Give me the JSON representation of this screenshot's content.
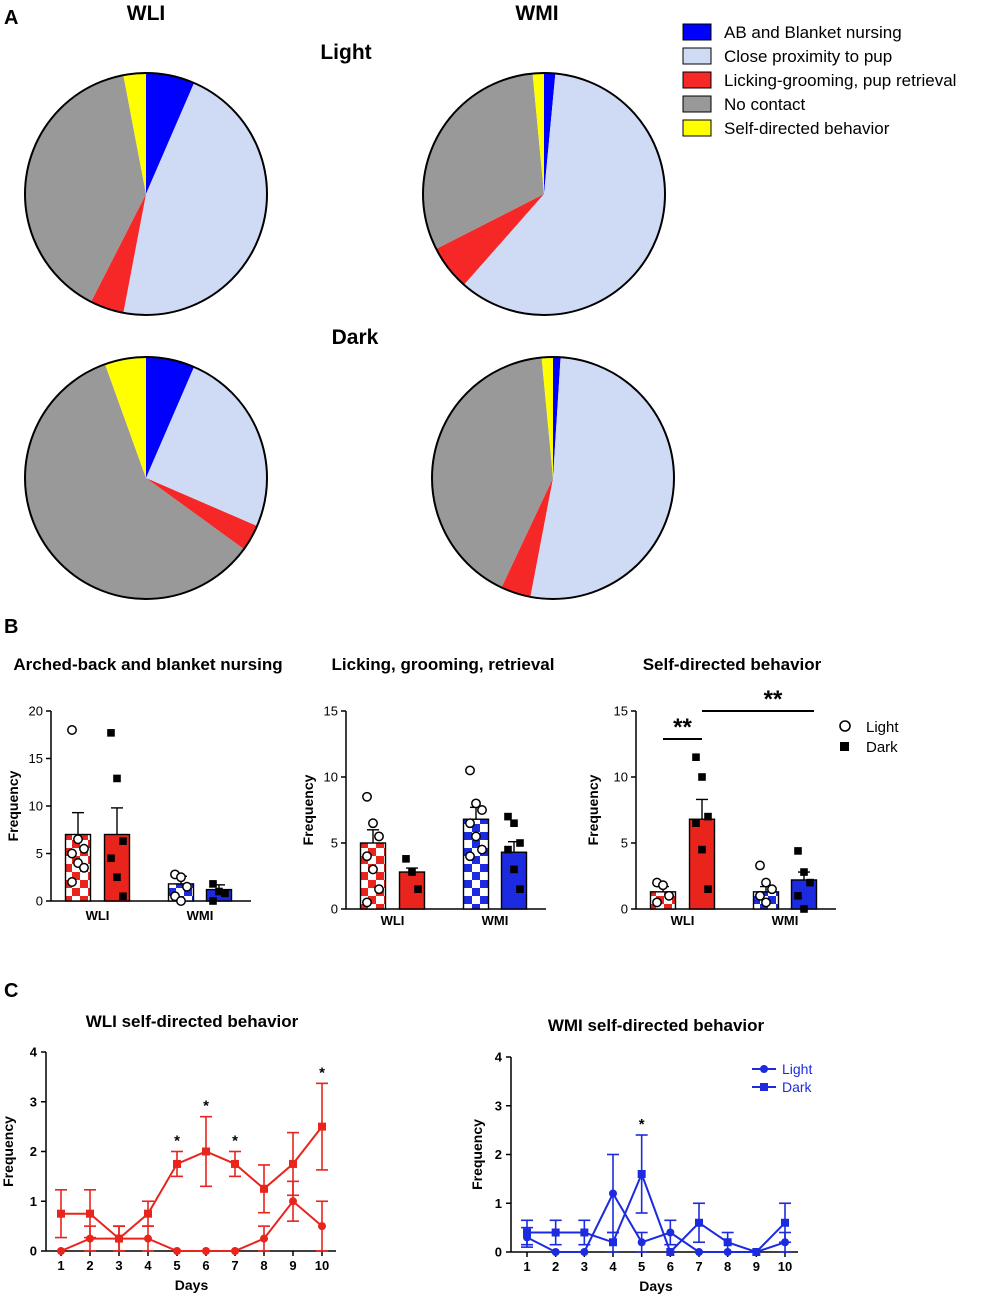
{
  "panel_labels": {
    "a": "A",
    "b": "B",
    "c": "C"
  },
  "colors": {
    "nursing": "#0000ff",
    "proximity": "#cfdbf5",
    "licking": "#f52727",
    "nocontact": "#999999",
    "self": "#ffff00",
    "wli": "#e8241c",
    "wmi": "#1c2bdf"
  },
  "pie_legend": [
    {
      "label": "AB and Blanket nursing",
      "color_key": "nursing"
    },
    {
      "label": "Close proximity to pup",
      "color_key": "proximity"
    },
    {
      "label": "Licking-grooming, pup retrieval",
      "color_key": "licking"
    },
    {
      "label": "No contact",
      "color_key": "nocontact"
    },
    {
      "label": "Self-directed behavior",
      "color_key": "self"
    }
  ],
  "pie_headers": {
    "wli": "WLI",
    "wmi": "WMI",
    "light": "Light",
    "dark": "Dark"
  },
  "bar_legend": {
    "light": "Light",
    "dark": "Dark"
  },
  "line_legend": {
    "light": "Light",
    "dark": "Dark"
  },
  "chart_data": [
    {
      "id": "pie-wli-light",
      "type": "pie",
      "title": "WLI Light",
      "categories": [
        "AB and Blanket nursing",
        "Close proximity to pup",
        "Licking-grooming, pup retrieval",
        "No contact",
        "Self-directed behavior"
      ],
      "values": [
        6.5,
        46.5,
        4.5,
        39.5,
        3
      ]
    },
    {
      "id": "pie-wmi-light",
      "type": "pie",
      "title": "WMI Light",
      "categories": [
        "AB and Blanket nursing",
        "Close proximity to pup",
        "Licking-grooming, pup retrieval",
        "No contact",
        "Self-directed behavior"
      ],
      "values": [
        1.5,
        60,
        6,
        31,
        1.5
      ]
    },
    {
      "id": "pie-wli-dark",
      "type": "pie",
      "title": "WLI Dark",
      "categories": [
        "AB and Blanket nursing",
        "Close proximity to pup",
        "Licking-grooming, pup retrieval",
        "No contact",
        "Self-directed behavior"
      ],
      "values": [
        6.5,
        25,
        3.5,
        59.5,
        5.5
      ]
    },
    {
      "id": "pie-wmi-dark",
      "type": "pie",
      "title": "WMI Dark",
      "categories": [
        "AB and Blanket nursing",
        "Close proximity to pup",
        "Licking-grooming, pup retrieval",
        "No contact",
        "Self-directed behavior"
      ],
      "values": [
        1,
        52,
        4,
        41.5,
        1.5
      ]
    },
    {
      "id": "bar-nursing",
      "type": "bar",
      "title": "Arched-back and blanket nursing",
      "xlabel": "",
      "ylabel": "Frequency",
      "ylim": [
        0,
        20
      ],
      "yticks": [
        0,
        5,
        10,
        15,
        20
      ],
      "groups": [
        "WLI",
        "WMI"
      ],
      "series": [
        {
          "name": "Light",
          "values": [
            7,
            1.8
          ],
          "errors": [
            2.3,
            0.8
          ]
        },
        {
          "name": "Dark",
          "values": [
            7,
            1.2
          ],
          "errors": [
            2.8,
            0.5
          ]
        }
      ],
      "points": {
        "WLI_Light": [
          18,
          6.5,
          5.5,
          5,
          4,
          3.5,
          2
        ],
        "WLI_Dark": [
          17.7,
          12.9,
          6.3,
          4.5,
          2.5,
          0.5
        ],
        "WMI_Light": [
          2.8,
          2.5,
          1.5,
          0.5,
          0
        ],
        "WMI_Dark": [
          1.8,
          1,
          0.8,
          0
        ]
      },
      "significance": []
    },
    {
      "id": "bar-licking",
      "type": "bar",
      "title": "Licking, grooming, retrieval",
      "xlabel": "",
      "ylabel": "Frequency",
      "ylim": [
        0,
        15
      ],
      "yticks": [
        0,
        5,
        10,
        15
      ],
      "groups": [
        "WLI",
        "WMI"
      ],
      "series": [
        {
          "name": "Light",
          "values": [
            5,
            6.8
          ],
          "errors": [
            1,
            0.9
          ]
        },
        {
          "name": "Dark",
          "values": [
            2.8,
            4.3
          ],
          "errors": [
            0.3,
            0.8
          ]
        }
      ],
      "points": {
        "WLI_Light": [
          8.5,
          6.5,
          5.5,
          4,
          3,
          1.5,
          0.5
        ],
        "WLI_Dark": [
          3.8,
          2.8,
          1.5
        ],
        "WMI_Light": [
          10.5,
          8,
          7.5,
          6.5,
          5.5,
          4.5,
          4
        ],
        "WMI_Dark": [
          7,
          6.5,
          5,
          4.5,
          3,
          1.5
        ]
      },
      "significance": []
    },
    {
      "id": "bar-self",
      "type": "bar",
      "title": "Self-directed behavior",
      "xlabel": "",
      "ylabel": "Frequency",
      "ylim": [
        0,
        15
      ],
      "yticks": [
        0,
        5,
        10,
        15
      ],
      "groups": [
        "WLI",
        "WMI"
      ],
      "series": [
        {
          "name": "Light",
          "values": [
            1.3,
            1.3
          ],
          "errors": [
            0.4,
            0.4
          ]
        },
        {
          "name": "Dark",
          "values": [
            6.8,
            2.2
          ],
          "errors": [
            1.5,
            0.6
          ]
        }
      ],
      "points": {
        "WLI_Light": [
          2,
          1.8,
          1,
          0.5
        ],
        "WLI_Dark": [
          11.5,
          10,
          7,
          6.5,
          4.5,
          1.5
        ],
        "WMI_Light": [
          3.3,
          2,
          1.5,
          1,
          0.5
        ],
        "WMI_Dark": [
          4.4,
          2.8,
          2,
          1,
          0
        ]
      },
      "significance": [
        {
          "label": "**",
          "between": "WLI Light vs WLI Dark"
        },
        {
          "label": "**",
          "between": "WLI Dark vs WMI Dark"
        }
      ]
    },
    {
      "id": "line-wli",
      "type": "line",
      "title": "WLI self-directed behavior",
      "xlabel": "Days",
      "ylabel": "Frequency",
      "ylim": [
        0,
        4
      ],
      "yticks": [
        0,
        1,
        2,
        3,
        4
      ],
      "x": [
        1,
        2,
        3,
        4,
        5,
        6,
        7,
        8,
        9,
        10
      ],
      "series": [
        {
          "name": "Light",
          "marker": "circle",
          "values": [
            0,
            0.25,
            0.25,
            0.25,
            0,
            0,
            0,
            0.25,
            1,
            0.5
          ],
          "errors": [
            0,
            0.25,
            0.25,
            0.25,
            0,
            0,
            0,
            0.25,
            0.4,
            0.5
          ]
        },
        {
          "name": "Dark",
          "marker": "square",
          "values": [
            0.75,
            0.75,
            0.25,
            0.75,
            1.75,
            2,
            1.75,
            1.25,
            1.75,
            2.5
          ],
          "errors": [
            0.48,
            0.48,
            0.25,
            0.25,
            0.25,
            0.7,
            0.25,
            0.48,
            0.63,
            0.87
          ]
        }
      ],
      "annotations": [
        {
          "x": 5,
          "label": "*"
        },
        {
          "x": 6,
          "label": "*"
        },
        {
          "x": 7,
          "label": "*"
        },
        {
          "x": 10,
          "label": "*"
        }
      ]
    },
    {
      "id": "line-wmi",
      "type": "line",
      "title": "WMI self-directed behavior",
      "xlabel": "Days",
      "ylabel": "Frequency",
      "ylim": [
        0,
        4
      ],
      "yticks": [
        0,
        1,
        2,
        3,
        4
      ],
      "x": [
        1,
        2,
        3,
        4,
        5,
        6,
        7,
        8,
        9,
        10
      ],
      "series": [
        {
          "name": "Light",
          "marker": "circle",
          "values": [
            0.3,
            0,
            0,
            1.2,
            0.2,
            0.4,
            0,
            0,
            0,
            0.2
          ],
          "errors": [
            0.2,
            0,
            0,
            0.8,
            0.2,
            0.25,
            0,
            0,
            0,
            0.2
          ]
        },
        {
          "name": "Dark",
          "marker": "square",
          "values": [
            0.4,
            0.4,
            0.4,
            0.2,
            1.6,
            0,
            0.6,
            0.2,
            0,
            0.6
          ],
          "errors": [
            0.25,
            0.25,
            0.25,
            0.2,
            0.8,
            0,
            0.4,
            0.2,
            0,
            0.4
          ]
        }
      ],
      "annotations": [
        {
          "x": 5,
          "label": "*"
        }
      ]
    }
  ]
}
